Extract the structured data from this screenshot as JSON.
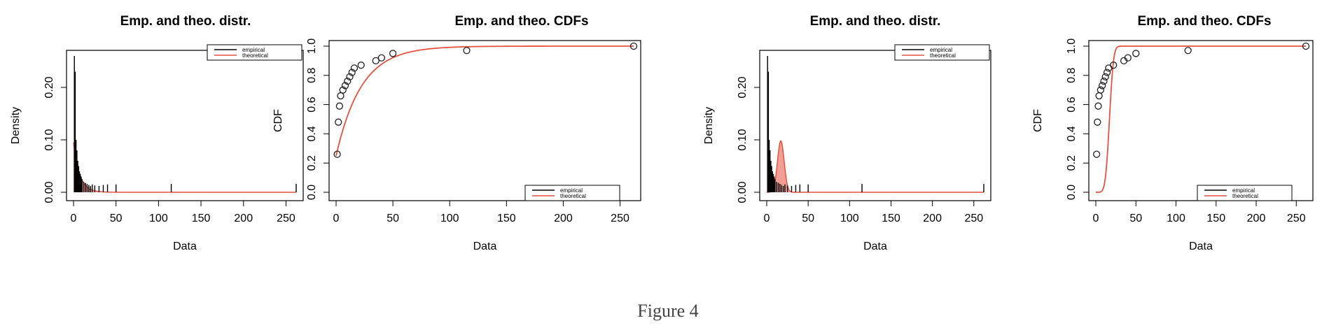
{
  "caption": "Figure 4",
  "colors": {
    "empirical": "#000000",
    "theoretical": "#e8513f",
    "text": "#000000"
  },
  "chart_data": [
    {
      "type": "histogram-density",
      "title": "Emp. and theo. distr.",
      "xlabel": "Data",
      "ylabel": "Density",
      "xlim": [
        0,
        262
      ],
      "ylim": [
        0,
        0.26
      ],
      "xticks": [
        0,
        50,
        100,
        150,
        200,
        250
      ],
      "yticks": [
        0.0,
        0.1,
        0.2
      ],
      "ytick_labels": [
        "0.00",
        "0.10",
        "0.20"
      ],
      "legend": {
        "position": "top-right",
        "entries": [
          "empirical",
          "theoretical"
        ]
      },
      "empirical_spikes": [
        [
          1,
          0.26
        ],
        [
          2,
          0.23
        ],
        [
          3,
          0.1
        ],
        [
          4,
          0.08
        ],
        [
          5,
          0.06
        ],
        [
          6,
          0.05
        ],
        [
          7,
          0.04
        ],
        [
          8,
          0.035
        ],
        [
          9,
          0.03
        ],
        [
          10,
          0.025
        ],
        [
          12,
          0.02
        ],
        [
          14,
          0.018
        ],
        [
          16,
          0.016
        ],
        [
          18,
          0.014
        ],
        [
          20,
          0.012
        ],
        [
          22,
          0.015
        ],
        [
          25,
          0.013
        ],
        [
          30,
          0.012
        ],
        [
          35,
          0.014
        ],
        [
          40,
          0.015
        ],
        [
          50,
          0.015
        ],
        [
          115,
          0.016
        ],
        [
          262,
          0.016
        ]
      ],
      "theoretical": {
        "shape": "exponential",
        "params": {
          "a": 0.095,
          "rate": 0.14
        }
      }
    },
    {
      "type": "cdf",
      "title": "Emp. and theo. CDFs",
      "xlabel": "Data",
      "ylabel": "CDF",
      "xlim": [
        0,
        262
      ],
      "ylim": [
        0,
        1.0
      ],
      "xticks": [
        0,
        50,
        100,
        150,
        200,
        250
      ],
      "yticks": [
        0.0,
        0.2,
        0.4,
        0.6,
        0.8,
        1.0
      ],
      "ytick_labels": [
        "0.0",
        "0.2",
        "0.4",
        "0.6",
        "0.8",
        "1.0"
      ],
      "legend": {
        "position": "bottom-right",
        "entries": [
          "empirical",
          "theoretical"
        ]
      },
      "empirical_points": [
        [
          1,
          0.26
        ],
        [
          2,
          0.48
        ],
        [
          3,
          0.59
        ],
        [
          4,
          0.66
        ],
        [
          6,
          0.7
        ],
        [
          8,
          0.73
        ],
        [
          10,
          0.76
        ],
        [
          12,
          0.79
        ],
        [
          14,
          0.82
        ],
        [
          16,
          0.85
        ],
        [
          22,
          0.87
        ],
        [
          35,
          0.9
        ],
        [
          40,
          0.92
        ],
        [
          50,
          0.95
        ],
        [
          115,
          0.97
        ],
        [
          262,
          1.0
        ]
      ],
      "theoretical": {
        "shape": "exponential-cdf",
        "params": {
          "p0": 0.25,
          "rate": 0.045
        }
      }
    },
    {
      "type": "histogram-density",
      "title": "Emp. and theo. distr.",
      "xlabel": "Data",
      "ylabel": "Density",
      "xlim": [
        0,
        262
      ],
      "ylim": [
        0,
        0.26
      ],
      "xticks": [
        0,
        50,
        100,
        150,
        200,
        250
      ],
      "yticks": [
        0.0,
        0.1,
        0.2
      ],
      "ytick_labels": [
        "0.00",
        "0.10",
        "0.20"
      ],
      "legend": {
        "position": "top-right",
        "entries": [
          "empirical",
          "theoretical"
        ]
      },
      "empirical_spikes": [
        [
          1,
          0.26
        ],
        [
          2,
          0.23
        ],
        [
          3,
          0.1
        ],
        [
          4,
          0.08
        ],
        [
          5,
          0.06
        ],
        [
          6,
          0.05
        ],
        [
          7,
          0.04
        ],
        [
          8,
          0.035
        ],
        [
          9,
          0.03
        ],
        [
          10,
          0.025
        ],
        [
          12,
          0.02
        ],
        [
          14,
          0.018
        ],
        [
          16,
          0.016
        ],
        [
          18,
          0.014
        ],
        [
          20,
          0.012
        ],
        [
          22,
          0.015
        ],
        [
          25,
          0.013
        ],
        [
          30,
          0.012
        ],
        [
          35,
          0.014
        ],
        [
          40,
          0.015
        ],
        [
          50,
          0.015
        ],
        [
          115,
          0.016
        ],
        [
          262,
          0.016
        ]
      ],
      "theoretical": {
        "shape": "normal",
        "params": {
          "mean": 17,
          "sd": 4,
          "peak": 0.098
        }
      }
    },
    {
      "type": "cdf",
      "title": "Emp. and theo. CDFs",
      "xlabel": "Data",
      "ylabel": "CDF",
      "xlim": [
        0,
        262
      ],
      "ylim": [
        0,
        1.0
      ],
      "xticks": [
        0,
        50,
        100,
        150,
        200,
        250
      ],
      "yticks": [
        0.0,
        0.2,
        0.4,
        0.6,
        0.8,
        1.0
      ],
      "ytick_labels": [
        "0.0",
        "0.2",
        "0.4",
        "0.6",
        "0.8",
        "1.0"
      ],
      "legend": {
        "position": "bottom-right",
        "entries": [
          "empirical",
          "theoretical"
        ]
      },
      "empirical_points": [
        [
          1,
          0.26
        ],
        [
          2,
          0.48
        ],
        [
          3,
          0.59
        ],
        [
          4,
          0.66
        ],
        [
          6,
          0.7
        ],
        [
          8,
          0.73
        ],
        [
          10,
          0.76
        ],
        [
          12,
          0.79
        ],
        [
          14,
          0.82
        ],
        [
          16,
          0.85
        ],
        [
          22,
          0.87
        ],
        [
          35,
          0.9
        ],
        [
          40,
          0.92
        ],
        [
          50,
          0.95
        ],
        [
          115,
          0.97
        ],
        [
          262,
          1.0
        ]
      ],
      "theoretical": {
        "shape": "normal-cdf",
        "params": {
          "mean": 17,
          "sd": 4
        }
      }
    }
  ]
}
